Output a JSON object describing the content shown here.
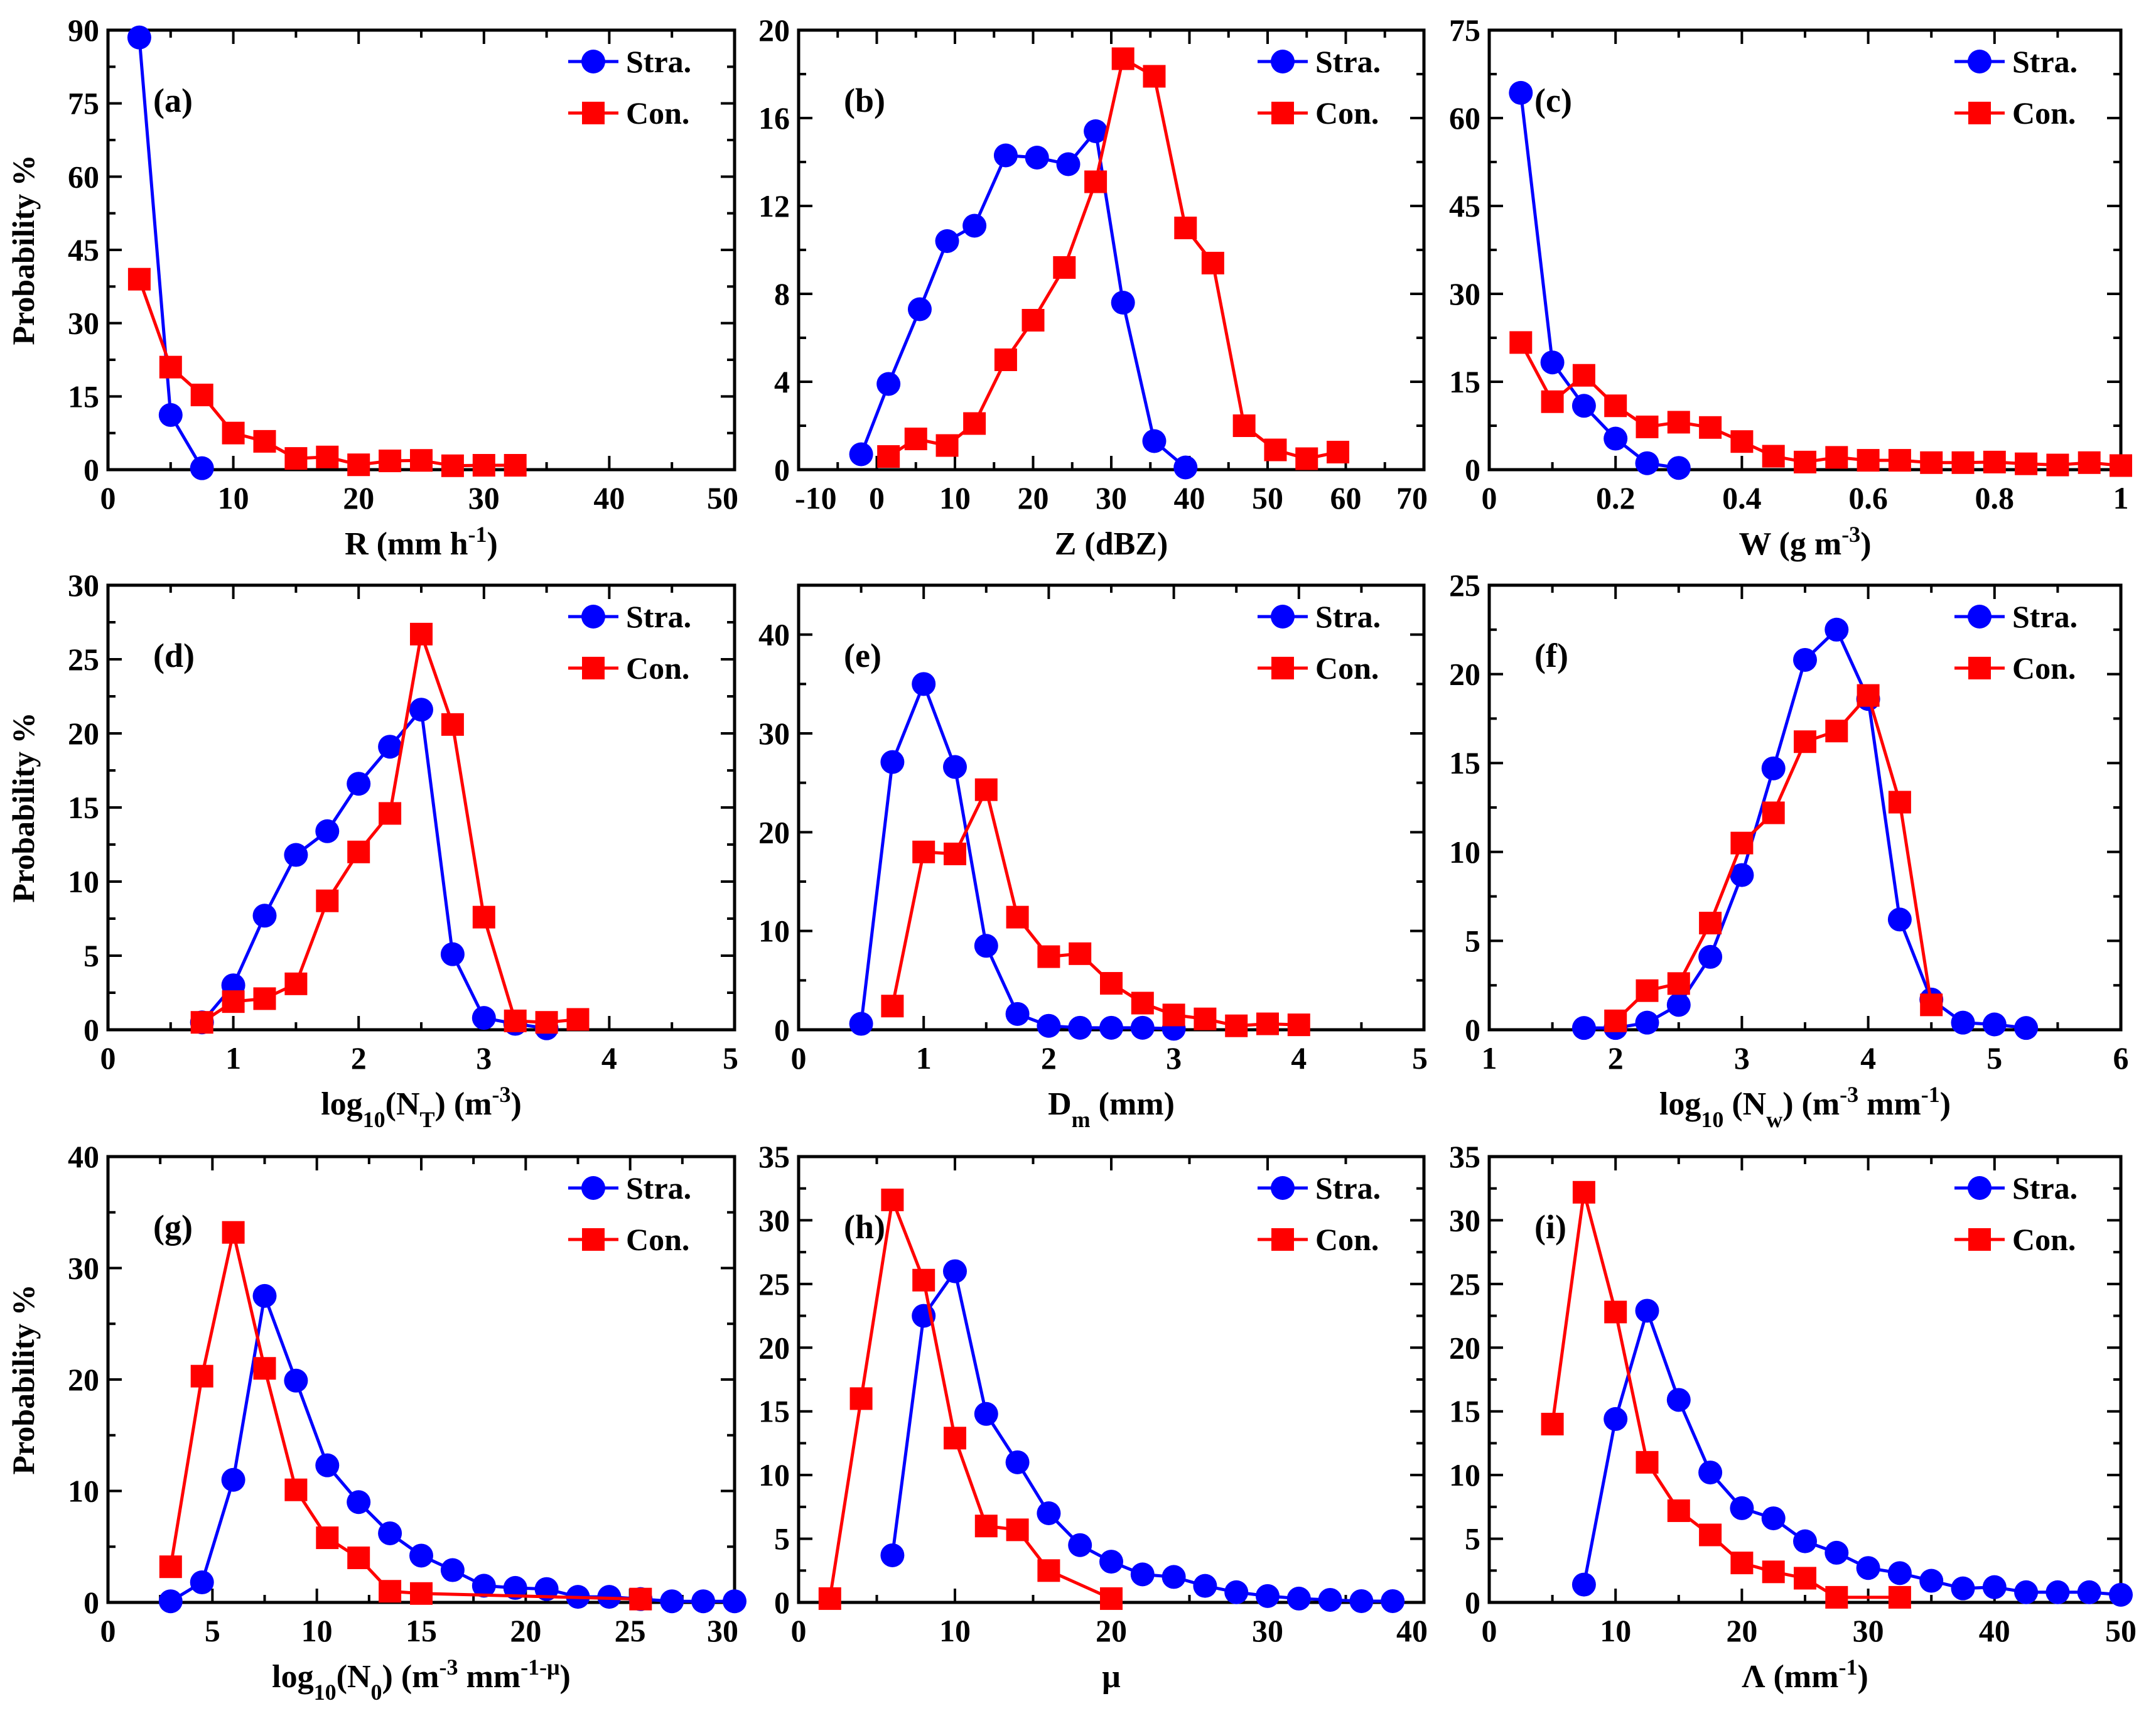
{
  "colors": {
    "stra": "#0000ff",
    "con": "#ff0000",
    "axis": "#000000"
  },
  "legend": {
    "stra": "Stra.",
    "con": "Con."
  },
  "ylabel": "Probability %",
  "chart_data": [
    {
      "type": "line",
      "letter": "(a)",
      "xlabel": "R (mm h",
      "xlabel_sup": "-1",
      "xlabel_end": ")",
      "xlim": [
        0,
        50
      ],
      "ylim": [
        0,
        90
      ],
      "xticks": [
        0,
        10,
        20,
        30,
        40,
        50
      ],
      "yticks": [
        0,
        15,
        30,
        45,
        60,
        75,
        90
      ],
      "series": [
        {
          "name": "Stra.",
          "x": [
            2.5,
            5,
            7.5
          ],
          "y": [
            88.5,
            11.2,
            0.3
          ]
        },
        {
          "name": "Con.",
          "x": [
            2.5,
            5,
            7.5,
            10,
            12.5,
            15,
            17.5,
            20,
            22.5,
            25,
            27.5,
            30,
            32.5
          ],
          "y": [
            39.0,
            21.0,
            15.3,
            7.5,
            5.8,
            2.3,
            2.6,
            1.0,
            1.8,
            1.9,
            0.8,
            0.9,
            0.9
          ]
        }
      ]
    },
    {
      "type": "line",
      "letter": "(b)",
      "xlabel": "Z (dBZ)",
      "xlim": [
        -10,
        70
      ],
      "ylim": [
        0,
        20
      ],
      "xticks": [
        -10,
        0,
        10,
        20,
        30,
        40,
        50,
        60,
        70
      ],
      "yticks": [
        0,
        4,
        8,
        12,
        16,
        20
      ],
      "series": [
        {
          "name": "Stra.",
          "x": [
            -2,
            1.5,
            5.5,
            9,
            12.5,
            16.5,
            20.5,
            24.5,
            28,
            31.5,
            35.5,
            39.5
          ],
          "y": [
            0.7,
            3.9,
            7.3,
            10.4,
            11.1,
            14.3,
            14.2,
            13.9,
            15.4,
            7.6,
            1.3,
            0.1
          ]
        },
        {
          "name": "Con.",
          "x": [
            1.5,
            5,
            9,
            12.5,
            16.5,
            20,
            24,
            28,
            31.5,
            35.5,
            39.5,
            43,
            47,
            51,
            55,
            59
          ],
          "y": [
            0.6,
            1.4,
            1.1,
            2.1,
            5.0,
            6.8,
            9.2,
            13.1,
            18.7,
            17.9,
            11.0,
            9.4,
            2.0,
            0.9,
            0.5,
            0.8
          ]
        }
      ]
    },
    {
      "type": "line",
      "letter": "(c)",
      "xlabel": "W (g m",
      "xlabel_sup": "-3",
      "xlabel_end": ")",
      "xlim": [
        0,
        1.0
      ],
      "ylim": [
        0,
        75
      ],
      "xticks": [
        0,
        0.2,
        0.4,
        0.6,
        0.8,
        1.0
      ],
      "yticks": [
        0,
        15,
        30,
        45,
        60,
        75
      ],
      "series": [
        {
          "name": "Stra.",
          "x": [
            0.05,
            0.1,
            0.15,
            0.2,
            0.25,
            0.3
          ],
          "y": [
            64.3,
            18.3,
            10.9,
            5.3,
            1.1,
            0.3
          ]
        },
        {
          "name": "Con.",
          "x": [
            0.05,
            0.1,
            0.15,
            0.2,
            0.25,
            0.3,
            0.35,
            0.4,
            0.45,
            0.5,
            0.55,
            0.6,
            0.65,
            0.7,
            0.75,
            0.8,
            0.85,
            0.9,
            0.95,
            1.0
          ],
          "y": [
            21.7,
            11.6,
            16.1,
            10.9,
            7.3,
            8.1,
            7.2,
            4.8,
            2.3,
            1.3,
            2.1,
            1.6,
            1.6,
            1.2,
            1.2,
            1.3,
            1.0,
            0.8,
            1.2,
            0.7
          ]
        }
      ]
    },
    {
      "type": "line",
      "letter": "(d)",
      "xlabel": "log",
      "xlabel_sub": "10",
      "xlabel_mid": "(N",
      "xlabel_sub2": "T",
      "xlabel_mid2": ") (m",
      "xlabel_sup": "-3",
      "xlabel_end": ")",
      "xlim": [
        0,
        5
      ],
      "ylim": [
        0,
        30
      ],
      "xticks": [
        0,
        1,
        2,
        3,
        4,
        5
      ],
      "yticks": [
        0,
        5,
        10,
        15,
        20,
        25,
        30
      ],
      "series": [
        {
          "name": "Stra.",
          "x": [
            0.75,
            1.0,
            1.25,
            1.5,
            1.75,
            2.0,
            2.25,
            2.5,
            2.75,
            3.0,
            3.25,
            3.5
          ],
          "y": [
            0.5,
            3.0,
            7.7,
            11.8,
            13.4,
            16.6,
            19.1,
            21.6,
            5.1,
            0.8,
            0.4,
            0.1
          ]
        },
        {
          "name": "Con.",
          "x": [
            0.75,
            1.0,
            1.25,
            1.5,
            1.75,
            2.0,
            2.25,
            2.5,
            2.75,
            3.0,
            3.25,
            3.5,
            3.75
          ],
          "y": [
            0.5,
            1.9,
            2.1,
            3.1,
            8.7,
            12.0,
            14.6,
            26.7,
            20.6,
            7.6,
            0.6,
            0.5,
            0.7
          ]
        }
      ]
    },
    {
      "type": "line",
      "letter": "(e)",
      "xlabel": "D",
      "xlabel_sub": "m",
      "xlabel_end": " (mm)",
      "xlim": [
        0,
        5
      ],
      "ylim": [
        0,
        45
      ],
      "xticks": [
        0,
        1,
        2,
        3,
        4,
        5
      ],
      "yticks": [
        0,
        10,
        20,
        30,
        40
      ],
      "series": [
        {
          "name": "Stra.",
          "x": [
            0.5,
            0.75,
            1.0,
            1.25,
            1.5,
            1.75,
            2.0,
            2.25,
            2.5,
            2.75,
            3.0
          ],
          "y": [
            0.6,
            27.1,
            35.0,
            26.6,
            8.5,
            1.6,
            0.4,
            0.2,
            0.2,
            0.2,
            0.1
          ]
        },
        {
          "name": "Con.",
          "x": [
            0.75,
            1.0,
            1.25,
            1.5,
            1.75,
            2.0,
            2.25,
            2.5,
            2.75,
            3.0,
            3.25,
            3.5,
            3.75,
            4.0
          ],
          "y": [
            2.4,
            18.0,
            17.8,
            24.3,
            11.4,
            7.4,
            7.7,
            4.7,
            2.7,
            1.5,
            1.1,
            0.4,
            0.6,
            0.5
          ]
        }
      ]
    },
    {
      "type": "line",
      "letter": "(f)",
      "xlabel": "log",
      "xlabel_sub": "10",
      "xlabel_mid": " (N",
      "xlabel_sub2": "w",
      "xlabel_mid2": ") (m",
      "xlabel_sup": "-3",
      "xlabel_end2": " mm",
      "xlabel_sup2": "-1",
      "xlabel_end": ")",
      "xlim": [
        1,
        6
      ],
      "ylim": [
        0,
        25
      ],
      "xticks": [
        1,
        2,
        3,
        4,
        5,
        6
      ],
      "yticks": [
        0,
        5,
        10,
        15,
        20,
        25
      ],
      "series": [
        {
          "name": "Stra.",
          "x": [
            1.75,
            2.0,
            2.25,
            2.5,
            2.75,
            3.0,
            3.25,
            3.5,
            3.75,
            4.0,
            4.25,
            4.5,
            4.75,
            5.0,
            5.25
          ],
          "y": [
            0.1,
            0.1,
            0.4,
            1.4,
            4.1,
            8.7,
            14.7,
            20.8,
            22.5,
            18.6,
            6.2,
            1.7,
            0.4,
            0.3,
            0.1
          ]
        },
        {
          "name": "Con.",
          "x": [
            2.0,
            2.25,
            2.5,
            2.75,
            3.0,
            3.25,
            3.5,
            3.75,
            4.0,
            4.25,
            4.5
          ],
          "y": [
            0.5,
            2.2,
            2.6,
            6.0,
            10.5,
            12.2,
            16.2,
            16.8,
            18.8,
            12.8,
            1.4
          ]
        }
      ]
    },
    {
      "type": "line",
      "letter": "(g)",
      "xlabel": "log",
      "xlabel_sub": "10",
      "xlabel_mid": "(N",
      "xlabel_sub2": "0",
      "xlabel_mid2": ") (m",
      "xlabel_sup": "-3",
      "xlabel_end2": " mm",
      "xlabel_sup2": "-1-μ",
      "xlabel_end": ")",
      "xlim": [
        0,
        30
      ],
      "ylim": [
        0,
        40
      ],
      "xticks": [
        0,
        5,
        10,
        15,
        20,
        25,
        30
      ],
      "yticks": [
        0,
        10,
        20,
        30,
        40
      ],
      "series": [
        {
          "name": "Stra.",
          "x": [
            3,
            4.5,
            6,
            7.5,
            9,
            10.5,
            12,
            13.5,
            15,
            16.5,
            18,
            19.5,
            21,
            22.5,
            24,
            25.5,
            27,
            28.5,
            30
          ],
          "y": [
            0.1,
            1.8,
            11.0,
            27.5,
            19.9,
            12.3,
            9.0,
            6.2,
            4.2,
            2.9,
            1.5,
            1.3,
            1.2,
            0.5,
            0.5,
            0.3,
            0.1,
            0.1,
            0.1
          ]
        },
        {
          "name": "Con.",
          "x": [
            3,
            4.5,
            6,
            7.5,
            9,
            10.5,
            12,
            13.5,
            15,
            25.5
          ],
          "y": [
            3.2,
            20.3,
            33.2,
            21.0,
            10.1,
            5.8,
            4.0,
            1.0,
            0.8,
            0.3
          ]
        }
      ]
    },
    {
      "type": "line",
      "letter": "(h)",
      "xlabel": "μ",
      "xlim": [
        0,
        40
      ],
      "ylim": [
        0,
        35
      ],
      "xticks": [
        0,
        10,
        20,
        30,
        40
      ],
      "yticks": [
        0,
        5,
        10,
        15,
        20,
        25,
        30,
        35
      ],
      "series": [
        {
          "name": "Stra.",
          "x": [
            6,
            8,
            10,
            12,
            14,
            16,
            18,
            20,
            22,
            24,
            26,
            28,
            30,
            32,
            34,
            36,
            38
          ],
          "y": [
            3.7,
            22.5,
            26.0,
            14.8,
            11.0,
            7.0,
            4.5,
            3.2,
            2.2,
            2.0,
            1.3,
            0.8,
            0.5,
            0.3,
            0.2,
            0.1,
            0.1
          ]
        },
        {
          "name": "Con.",
          "x": [
            2,
            4,
            6,
            8,
            10,
            12,
            14,
            16,
            20
          ],
          "y": [
            0.3,
            16.0,
            31.6,
            25.3,
            12.9,
            6.0,
            5.7,
            2.5,
            0.3
          ]
        }
      ]
    },
    {
      "type": "line",
      "letter": "(i)",
      "xlabel": "Λ (mm",
      "xlabel_sup": "-1",
      "xlabel_end": ")",
      "xlim": [
        0,
        50
      ],
      "ylim": [
        0,
        35
      ],
      "xticks": [
        0,
        10,
        20,
        30,
        40,
        50
      ],
      "yticks": [
        0,
        5,
        10,
        15,
        20,
        25,
        30,
        35
      ],
      "series": [
        {
          "name": "Stra.",
          "x": [
            7.5,
            10,
            12.5,
            15,
            17.5,
            20,
            22.5,
            25,
            27.5,
            30,
            32.5,
            35,
            37.5,
            40,
            42.5,
            45,
            47.5,
            50
          ],
          "y": [
            1.4,
            14.4,
            22.9,
            15.9,
            10.2,
            7.4,
            6.6,
            4.8,
            3.9,
            2.7,
            2.3,
            1.7,
            1.1,
            1.2,
            0.8,
            0.8,
            0.8,
            0.6
          ]
        },
        {
          "name": "Con.",
          "x": [
            5,
            7.5,
            10,
            12.5,
            15,
            17.5,
            20,
            22.5,
            25,
            27.5,
            32.5
          ],
          "y": [
            14.0,
            32.2,
            22.8,
            11.0,
            7.2,
            5.3,
            3.1,
            2.4,
            1.9,
            0.4,
            0.4
          ]
        }
      ]
    }
  ]
}
